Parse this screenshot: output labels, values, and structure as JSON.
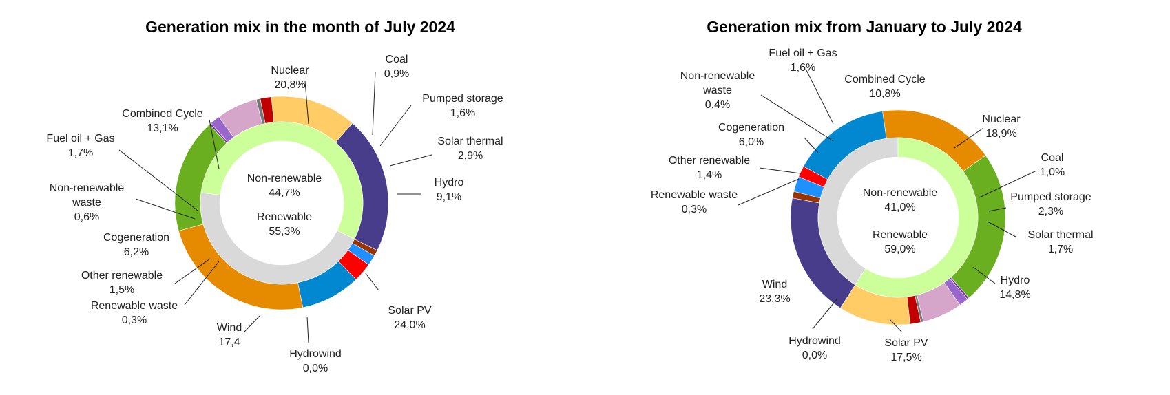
{
  "chart_data": [
    {
      "type": "pie",
      "title": "Generation mix in the month of July 2024",
      "inner_ring": [
        {
          "name": "Non-renewable",
          "label": "44,7%",
          "value": 44.7,
          "color": "#d9d9d9"
        },
        {
          "name": "Renewable",
          "label": "55,3%",
          "value": 55.3,
          "color": "#ccff99"
        }
      ],
      "outer_ring": [
        {
          "name": "Coal",
          "label": "0,9%",
          "value": 0.9,
          "color": "#993300"
        },
        {
          "name": "Pumped storage",
          "label": "1,6%",
          "value": 1.6,
          "color": "#1e90ff"
        },
        {
          "name": "Solar thermal",
          "label": "2,9%",
          "value": 2.9,
          "color": "#ff0000"
        },
        {
          "name": "Hydro",
          "label": "9,1%",
          "value": 9.1,
          "color": "#0288d1"
        },
        {
          "name": "Solar PV",
          "label": "24,0%",
          "value": 24.0,
          "color": "#e68a00"
        },
        {
          "name": "Hydrowind",
          "label": "0,0%",
          "value": 0.0,
          "color": "#1f4e79"
        },
        {
          "name": "Wind",
          "label": "17,4",
          "value": 17.4,
          "color": "#6aaf1f"
        },
        {
          "name": "Renewable waste",
          "label": "0,3%",
          "value": 0.3,
          "color": "#7030a0"
        },
        {
          "name": "Other renewable",
          "label": "1,5%",
          "value": 1.5,
          "color": "#9966cc"
        },
        {
          "name": "Cogeneration",
          "label": "6,2%",
          "value": 6.2,
          "color": "#d5a6c9"
        },
        {
          "name": "Non-renewable waste",
          "label": "0,6%",
          "value": 0.6,
          "color": "#777777"
        },
        {
          "name": "Fuel oil + Gas",
          "label": "1,7%",
          "value": 1.7,
          "color": "#c00000"
        },
        {
          "name": "Combined Cycle",
          "label": "13,1%",
          "value": 13.1,
          "color": "#ffcc66"
        },
        {
          "name": "Nuclear",
          "label": "20,8%",
          "value": 20.8,
          "color": "#483d8b"
        }
      ]
    },
    {
      "type": "pie",
      "title": "Generation mix from January to July 2024",
      "inner_ring": [
        {
          "name": "Non-renewable",
          "label": "41,0%",
          "value": 41.0,
          "color": "#d9d9d9"
        },
        {
          "name": "Renewable",
          "label": "59,0%",
          "value": 59.0,
          "color": "#ccff99"
        }
      ],
      "outer_ring": [
        {
          "name": "Nuclear",
          "label": "18,9%",
          "value": 18.9,
          "color": "#483d8b"
        },
        {
          "name": "Coal",
          "label": "1,0%",
          "value": 1.0,
          "color": "#993300"
        },
        {
          "name": "Pumped storage",
          "label": "2,3%",
          "value": 2.3,
          "color": "#1e90ff"
        },
        {
          "name": "Solar thermal",
          "label": "1,7%",
          "value": 1.7,
          "color": "#ff0000"
        },
        {
          "name": "Hydro",
          "label": "14,8%",
          "value": 14.8,
          "color": "#0288d1"
        },
        {
          "name": "Solar PV",
          "label": "17,5%",
          "value": 17.5,
          "color": "#e68a00"
        },
        {
          "name": "Hydrowind",
          "label": "0,0%",
          "value": 0.0,
          "color": "#1f4e79"
        },
        {
          "name": "Wind",
          "label": "23,3%",
          "value": 23.3,
          "color": "#6aaf1f"
        },
        {
          "name": "Renewable waste",
          "label": "0,3%",
          "value": 0.3,
          "color": "#7030a0"
        },
        {
          "name": "Other renewable",
          "label": "1,4%",
          "value": 1.4,
          "color": "#9966cc"
        },
        {
          "name": "Cogeneration",
          "label": "6,0%",
          "value": 6.0,
          "color": "#d5a6c9"
        },
        {
          "name": "Non-renewable waste",
          "label": "0,4%",
          "value": 0.4,
          "color": "#777777"
        },
        {
          "name": "Fuel oil + Gas",
          "label": "1,6%",
          "value": 1.6,
          "color": "#c00000"
        },
        {
          "name": "Combined Cycle",
          "label": "10,8%",
          "value": 10.8,
          "color": "#ffcc66"
        }
      ]
    }
  ]
}
